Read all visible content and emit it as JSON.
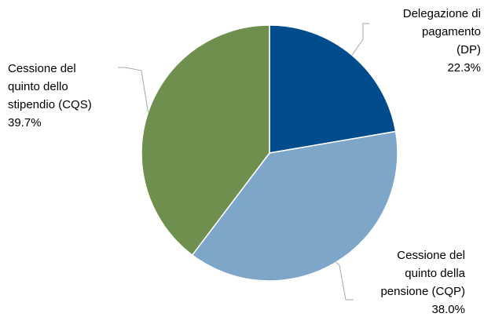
{
  "chart_data": {
    "type": "pie",
    "categories": [
      "Delegazione di\npagamento\n(DP)",
      "Cessione del\nquinto della\npensione (CQP)",
      "Cessione del\nquinto dello\nstipendio (CQS)"
    ],
    "values": [
      22.3,
      38.0,
      39.7
    ],
    "value_labels": [
      "22.3%",
      "38.0%",
      "39.7%"
    ],
    "colors": [
      "#004c8c",
      "#7ea6c9",
      "#6e8f4e"
    ]
  }
}
